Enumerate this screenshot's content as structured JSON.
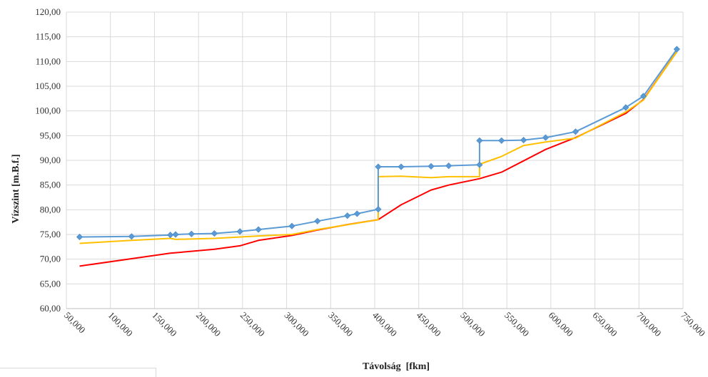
{
  "chart_data": {
    "type": "line",
    "xlabel": "Távolság  [fkm]",
    "ylabel": "Vízszint [m.B.f.]",
    "xlim": [
      50000,
      750000
    ],
    "ylim": [
      60,
      120
    ],
    "x_ticks": [
      "50,000",
      "100,000",
      "150,000",
      "200,000",
      "250,000",
      "300,000",
      "350,000",
      "400,000",
      "450,000",
      "500,000",
      "550,000",
      "600,000",
      "650,000",
      "700,000",
      "750,000"
    ],
    "y_ticks": [
      "60,00",
      "65,00",
      "70,00",
      "75,00",
      "80,00",
      "85,00",
      "90,00",
      "95,00",
      "100,00",
      "105,00",
      "110,00",
      "115,00",
      "120,00"
    ],
    "grid": true,
    "series": [
      {
        "color": "#5b9bd5",
        "markers": true,
        "points": [
          [
            65000,
            74.5
          ],
          [
            124000,
            74.6
          ],
          [
            168000,
            74.9
          ],
          [
            174000,
            75.0
          ],
          [
            192000,
            75.1
          ],
          [
            218000,
            75.2
          ],
          [
            247000,
            75.6
          ],
          [
            268000,
            76.0
          ],
          [
            306000,
            76.7
          ],
          [
            335000,
            77.7
          ],
          [
            369000,
            78.8
          ],
          [
            380000,
            79.2
          ],
          [
            404000,
            80.1
          ],
          [
            404000,
            88.7
          ],
          [
            430000,
            88.7
          ],
          [
            464000,
            88.8
          ],
          [
            484000,
            88.9
          ],
          [
            519000,
            89.1
          ],
          [
            519000,
            94.0
          ],
          [
            544000,
            94.0
          ],
          [
            569000,
            94.1
          ],
          [
            594000,
            94.6
          ],
          [
            628000,
            95.8
          ],
          [
            685000,
            100.7
          ],
          [
            705000,
            103.0
          ],
          [
            743000,
            112.5
          ]
        ]
      },
      {
        "color": "#ffc000",
        "markers": false,
        "points": [
          [
            65000,
            73.2
          ],
          [
            124000,
            73.8
          ],
          [
            168000,
            74.2
          ],
          [
            174000,
            74.0
          ],
          [
            218000,
            74.2
          ],
          [
            268000,
            74.7
          ],
          [
            306000,
            75.0
          ],
          [
            335000,
            76.0
          ],
          [
            380000,
            77.3
          ],
          [
            404000,
            78.0
          ],
          [
            404000,
            86.7
          ],
          [
            430000,
            86.8
          ],
          [
            464000,
            86.5
          ],
          [
            484000,
            86.7
          ],
          [
            519000,
            86.7
          ],
          [
            519000,
            89.2
          ],
          [
            544000,
            90.8
          ],
          [
            569000,
            93.0
          ],
          [
            594000,
            93.7
          ],
          [
            628000,
            94.5
          ],
          [
            685000,
            99.8
          ],
          [
            705000,
            102.2
          ],
          [
            743000,
            112.0
          ]
        ]
      },
      {
        "color": "#ff0000",
        "markers": false,
        "points": [
          [
            65000,
            68.6
          ],
          [
            124000,
            70.1
          ],
          [
            168000,
            71.2
          ],
          [
            218000,
            72.0
          ],
          [
            247000,
            72.7
          ],
          [
            268000,
            73.8
          ],
          [
            306000,
            74.8
          ],
          [
            335000,
            75.9
          ],
          [
            369000,
            77.0
          ],
          [
            404000,
            78.0
          ],
          [
            430000,
            81.0
          ],
          [
            464000,
            84.0
          ],
          [
            484000,
            85.0
          ],
          [
            519000,
            86.3
          ],
          [
            544000,
            87.6
          ],
          [
            569000,
            89.9
          ],
          [
            594000,
            92.2
          ],
          [
            628000,
            94.6
          ],
          [
            685000,
            99.5
          ],
          [
            705000,
            102.3
          ],
          [
            743000,
            112.0
          ]
        ]
      }
    ]
  }
}
